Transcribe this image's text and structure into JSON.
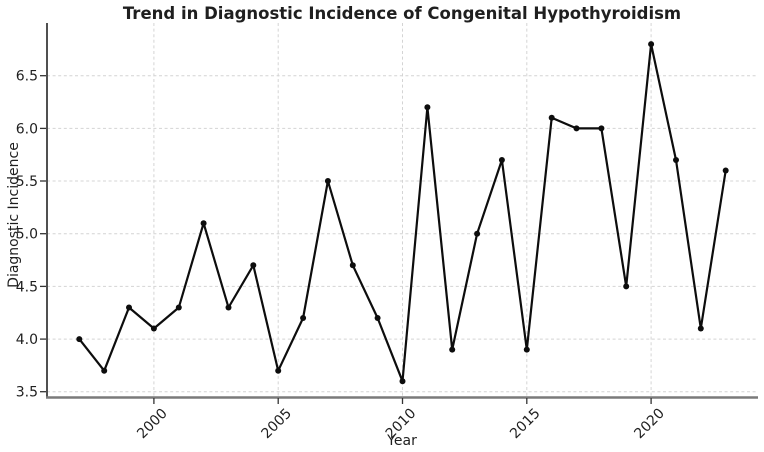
{
  "chart_data": {
    "type": "line",
    "title": "Trend in Diagnostic Incidence of Congenital Hypothyroidism",
    "xlabel": "Year",
    "ylabel": "Diagnostic Incidence",
    "x": [
      1997,
      1998,
      1999,
      2000,
      2001,
      2002,
      2003,
      2004,
      2005,
      2006,
      2007,
      2008,
      2009,
      2010,
      2011,
      2012,
      2013,
      2014,
      2015,
      2016,
      2017,
      2018,
      2019,
      2020,
      2021,
      2022,
      2023
    ],
    "y": [
      4.0,
      3.7,
      4.3,
      4.1,
      4.3,
      5.1,
      4.3,
      4.7,
      3.7,
      4.2,
      5.5,
      4.7,
      4.2,
      3.6,
      6.2,
      3.9,
      5.0,
      5.7,
      3.9,
      6.1,
      6.0,
      6.0,
      4.5,
      6.8,
      5.7,
      4.1,
      5.6
    ],
    "xticks": [
      2000,
      2005,
      2010,
      2015,
      2020
    ],
    "xtick_labels": [
      "2000",
      "2005",
      "2010",
      "2015",
      "2020"
    ],
    "yticks": [
      3.5,
      4.0,
      4.5,
      5.0,
      5.5,
      6.0,
      6.5
    ],
    "ytick_labels": [
      "3.5",
      "4.0",
      "4.5",
      "5.0",
      "5.5",
      "6.0",
      "6.5"
    ],
    "xlim": [
      1995.7,
      2024.3
    ],
    "ylim": [
      3.45,
      7.0
    ],
    "grid": true,
    "grid_style": "dashed",
    "legend": null,
    "line_color": "#0d0d0d",
    "marker": "o",
    "marker_color": "#0d0d0d",
    "grid_color": "#d4d4d4",
    "text_color": "#1f1f1f"
  }
}
